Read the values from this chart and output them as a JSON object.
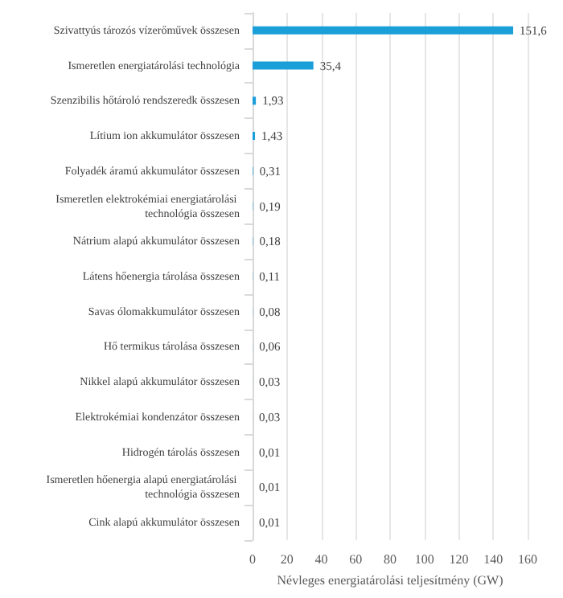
{
  "chart_data": {
    "type": "bar",
    "orientation": "horizontal",
    "xlabel": "Névleges energiatárolási teljesítmény (GW)",
    "categories": [
      "Szivattyús tározós vízerőművek összesen",
      "Ismeretlen energiatárolási technológia",
      "Szenzibilis hőtároló rendszeredk összesen",
      "Lítium ion akkumulátor összesen",
      "Folyadék áramú akkumulátor összesen",
      "Ismeretlen elektrokémiai energiatárolási technológia összesen",
      "Nátrium alapú akkumulátor összesen",
      "Látens hőenergia tárolása összesen",
      "Savas ólomakkumulátor összesen",
      "Hő termikus tárolása összesen",
      "Nikkel alapú akkumulátor összesen",
      "Elektrokémiai kondenzátor összesen",
      "Hidrogén tárolás összesen",
      "Ismeretlen hőenergia alapú energiatárolási technológia összesen",
      "Cink alapú akkumulátor összesen"
    ],
    "values": [
      151.6,
      35.4,
      1.93,
      1.43,
      0.31,
      0.19,
      0.18,
      0.11,
      0.08,
      0.06,
      0.03,
      0.03,
      0.01,
      0.01,
      0.01
    ],
    "value_labels": [
      "151,6",
      "35,4",
      "1,93",
      "1,43",
      "0,31",
      "0,19",
      "0,18",
      "0,11",
      "0,08",
      "0,06",
      "0,03",
      "0,03",
      "0,01",
      "0,01",
      "0,01"
    ],
    "color": "#1a9fd9",
    "xlim": [
      0,
      160
    ],
    "xticks": [
      0,
      20,
      40,
      60,
      80,
      100,
      120,
      140,
      160
    ],
    "grid": "x"
  }
}
